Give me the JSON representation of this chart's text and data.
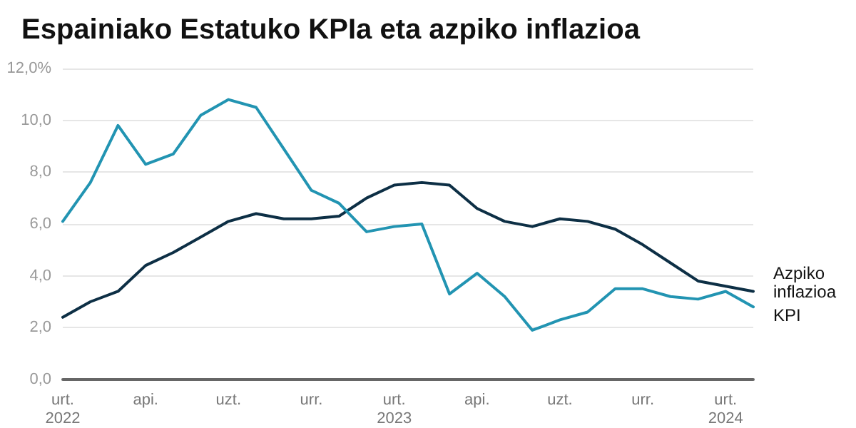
{
  "chart_data": {
    "type": "line",
    "title": "Espainiako Estatuko KPIa eta azpiko inflazioa",
    "categories": [
      "urt. 2022",
      null,
      null,
      "api.",
      null,
      null,
      "uzt.",
      null,
      null,
      "urr.",
      null,
      null,
      "urt. 2023",
      null,
      null,
      "api.",
      null,
      null,
      "uzt.",
      null,
      null,
      "urr.",
      null,
      null,
      "urt. 2024",
      null
    ],
    "series": [
      {
        "name": "Azpiko inflazioa",
        "color": "#0d2f45",
        "values": [
          2.4,
          3.0,
          3.4,
          4.4,
          4.9,
          5.5,
          6.1,
          6.4,
          6.2,
          6.2,
          6.3,
          7.0,
          7.5,
          7.6,
          7.5,
          6.6,
          6.1,
          5.9,
          6.2,
          6.1,
          5.8,
          5.2,
          4.5,
          3.8,
          3.6,
          3.4
        ]
      },
      {
        "name": "KPI",
        "color": "#2294b2",
        "values": [
          6.1,
          7.6,
          9.8,
          8.3,
          8.7,
          10.2,
          10.8,
          10.5,
          8.9,
          7.3,
          6.8,
          5.7,
          5.9,
          6.0,
          3.3,
          4.1,
          3.2,
          1.9,
          2.3,
          2.6,
          3.5,
          3.5,
          3.2,
          3.1,
          3.4,
          2.8
        ]
      }
    ],
    "ylim": [
      0,
      12
    ],
    "yticks": [
      {
        "value": 0,
        "label": "0,0"
      },
      {
        "value": 2,
        "label": "2,0"
      },
      {
        "value": 4,
        "label": "4,0"
      },
      {
        "value": 6,
        "label": "6,0"
      },
      {
        "value": 8,
        "label": "8,0"
      },
      {
        "value": 10,
        "label": "10,0"
      },
      {
        "value": 12,
        "label": "12,0%"
      }
    ],
    "grid": "y",
    "legend": false,
    "marker": "none",
    "line_style": "solid"
  }
}
